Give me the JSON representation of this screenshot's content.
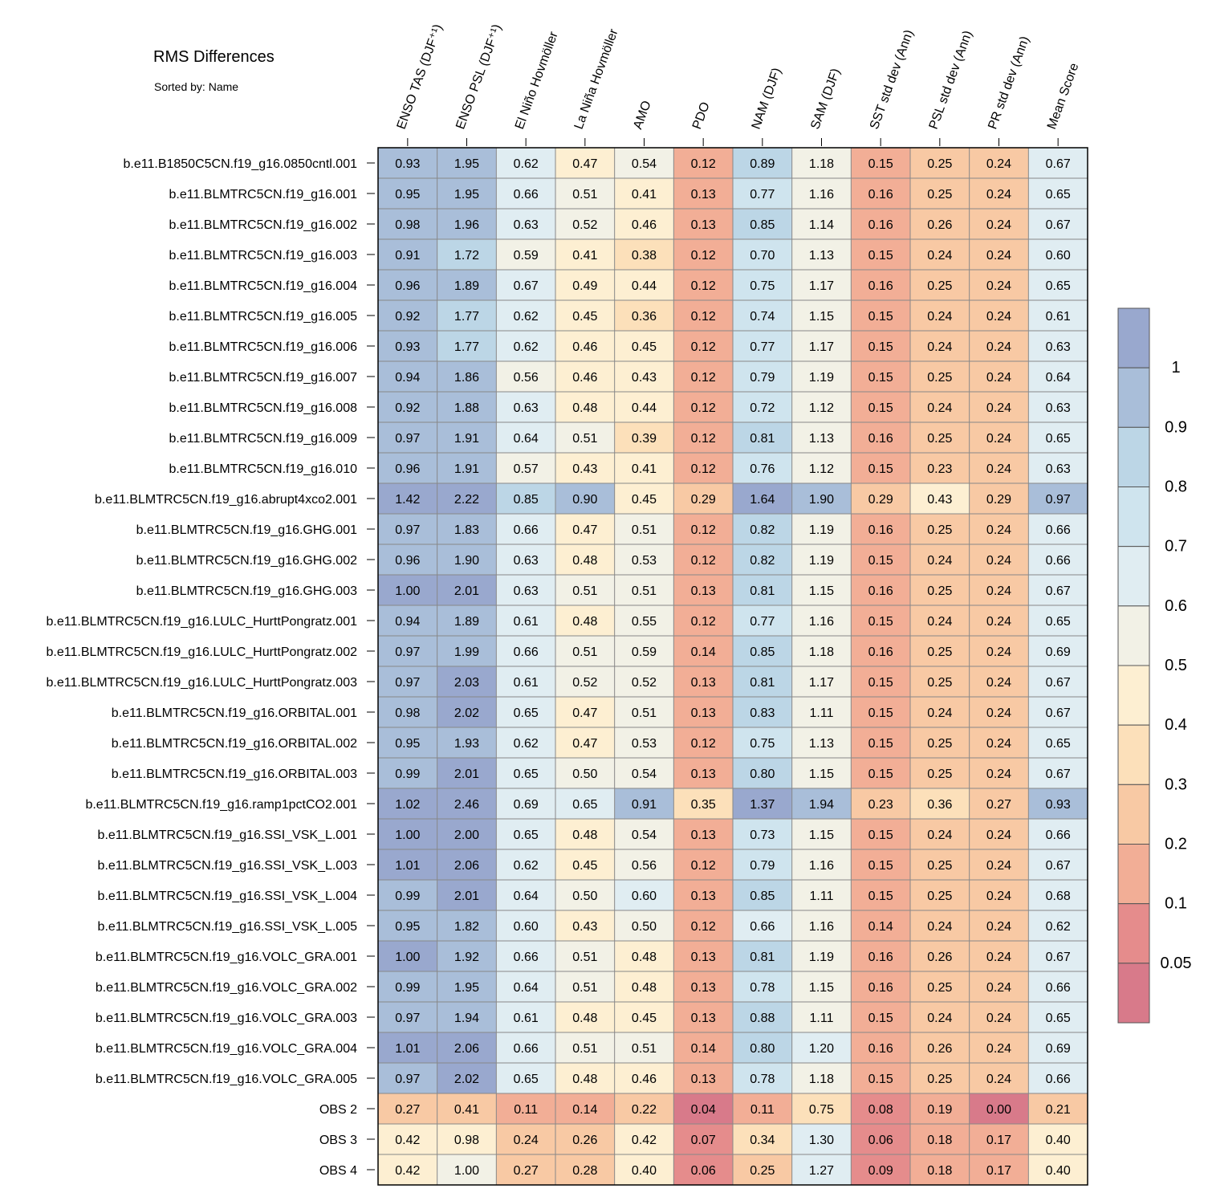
{
  "title": "RMS Differences",
  "subtitle": "Sorted by: Name",
  "chart_data": {
    "type": "heatmap",
    "columns": [
      "ENSO TAS (DJF⁺¹)",
      "ENSO PSL (DJF⁺¹)",
      "El Niño Hovmöller",
      "La Niña Hovmöller",
      "AMO",
      "PDO",
      "NAM (DJF)",
      "SAM (DJF)",
      "SST std dev (Ann)",
      "PSL std dev (Ann)",
      "PR std dev (Ann)",
      "Mean Score"
    ],
    "rows": [
      "b.e11.B1850C5CN.f19_g16.0850cntl.001",
      "b.e11.BLMTRC5CN.f19_g16.001",
      "b.e11.BLMTRC5CN.f19_g16.002",
      "b.e11.BLMTRC5CN.f19_g16.003",
      "b.e11.BLMTRC5CN.f19_g16.004",
      "b.e11.BLMTRC5CN.f19_g16.005",
      "b.e11.BLMTRC5CN.f19_g16.006",
      "b.e11.BLMTRC5CN.f19_g16.007",
      "b.e11.BLMTRC5CN.f19_g16.008",
      "b.e11.BLMTRC5CN.f19_g16.009",
      "b.e11.BLMTRC5CN.f19_g16.010",
      "b.e11.BLMTRC5CN.f19_g16.abrupt4xco2.001",
      "b.e11.BLMTRC5CN.f19_g16.GHG.001",
      "b.e11.BLMTRC5CN.f19_g16.GHG.002",
      "b.e11.BLMTRC5CN.f19_g16.GHG.003",
      "b.e11.BLMTRC5CN.f19_g16.LULC_HurttPongratz.001",
      "b.e11.BLMTRC5CN.f19_g16.LULC_HurttPongratz.002",
      "b.e11.BLMTRC5CN.f19_g16.LULC_HurttPongratz.003",
      "b.e11.BLMTRC5CN.f19_g16.ORBITAL.001",
      "b.e11.BLMTRC5CN.f19_g16.ORBITAL.002",
      "b.e11.BLMTRC5CN.f19_g16.ORBITAL.003",
      "b.e11.BLMTRC5CN.f19_g16.ramp1pctCO2.001",
      "b.e11.BLMTRC5CN.f19_g16.SSI_VSK_L.001",
      "b.e11.BLMTRC5CN.f19_g16.SSI_VSK_L.003",
      "b.e11.BLMTRC5CN.f19_g16.SSI_VSK_L.004",
      "b.e11.BLMTRC5CN.f19_g16.SSI_VSK_L.005",
      "b.e11.BLMTRC5CN.f19_g16.VOLC_GRA.001",
      "b.e11.BLMTRC5CN.f19_g16.VOLC_GRA.002",
      "b.e11.BLMTRC5CN.f19_g16.VOLC_GRA.003",
      "b.e11.BLMTRC5CN.f19_g16.VOLC_GRA.004",
      "b.e11.BLMTRC5CN.f19_g16.VOLC_GRA.005",
      "OBS 2",
      "OBS 3",
      "OBS 4"
    ],
    "values": [
      [
        "0.93",
        "1.95",
        "0.62",
        "0.47",
        "0.54",
        "0.12",
        "0.89",
        "1.18",
        "0.15",
        "0.25",
        "0.24",
        "0.67"
      ],
      [
        "0.95",
        "1.95",
        "0.66",
        "0.51",
        "0.41",
        "0.13",
        "0.77",
        "1.16",
        "0.16",
        "0.25",
        "0.24",
        "0.65"
      ],
      [
        "0.98",
        "1.96",
        "0.63",
        "0.52",
        "0.46",
        "0.13",
        "0.85",
        "1.14",
        "0.16",
        "0.26",
        "0.24",
        "0.67"
      ],
      [
        "0.91",
        "1.72",
        "0.59",
        "0.41",
        "0.38",
        "0.12",
        "0.70",
        "1.13",
        "0.15",
        "0.24",
        "0.24",
        "0.60"
      ],
      [
        "0.96",
        "1.89",
        "0.67",
        "0.49",
        "0.44",
        "0.12",
        "0.75",
        "1.17",
        "0.16",
        "0.25",
        "0.24",
        "0.65"
      ],
      [
        "0.92",
        "1.77",
        "0.62",
        "0.45",
        "0.36",
        "0.12",
        "0.74",
        "1.15",
        "0.15",
        "0.24",
        "0.24",
        "0.61"
      ],
      [
        "0.93",
        "1.77",
        "0.62",
        "0.46",
        "0.45",
        "0.12",
        "0.77",
        "1.17",
        "0.15",
        "0.24",
        "0.24",
        "0.63"
      ],
      [
        "0.94",
        "1.86",
        "0.56",
        "0.46",
        "0.43",
        "0.12",
        "0.79",
        "1.19",
        "0.15",
        "0.25",
        "0.24",
        "0.64"
      ],
      [
        "0.92",
        "1.88",
        "0.63",
        "0.48",
        "0.44",
        "0.12",
        "0.72",
        "1.12",
        "0.15",
        "0.24",
        "0.24",
        "0.63"
      ],
      [
        "0.97",
        "1.91",
        "0.64",
        "0.51",
        "0.39",
        "0.12",
        "0.81",
        "1.13",
        "0.16",
        "0.25",
        "0.24",
        "0.65"
      ],
      [
        "0.96",
        "1.91",
        "0.57",
        "0.43",
        "0.41",
        "0.12",
        "0.76",
        "1.12",
        "0.15",
        "0.23",
        "0.24",
        "0.63"
      ],
      [
        "1.42",
        "2.22",
        "0.85",
        "0.90",
        "0.45",
        "0.29",
        "1.64",
        "1.90",
        "0.29",
        "0.43",
        "0.29",
        "0.97"
      ],
      [
        "0.97",
        "1.83",
        "0.66",
        "0.47",
        "0.51",
        "0.12",
        "0.82",
        "1.19",
        "0.16",
        "0.25",
        "0.24",
        "0.66"
      ],
      [
        "0.96",
        "1.90",
        "0.63",
        "0.48",
        "0.53",
        "0.12",
        "0.82",
        "1.19",
        "0.15",
        "0.24",
        "0.24",
        "0.66"
      ],
      [
        "1.00",
        "2.01",
        "0.63",
        "0.51",
        "0.51",
        "0.13",
        "0.81",
        "1.15",
        "0.16",
        "0.25",
        "0.24",
        "0.67"
      ],
      [
        "0.94",
        "1.89",
        "0.61",
        "0.48",
        "0.55",
        "0.12",
        "0.77",
        "1.16",
        "0.15",
        "0.24",
        "0.24",
        "0.65"
      ],
      [
        "0.97",
        "1.99",
        "0.66",
        "0.51",
        "0.59",
        "0.14",
        "0.85",
        "1.18",
        "0.16",
        "0.25",
        "0.24",
        "0.69"
      ],
      [
        "0.97",
        "2.03",
        "0.61",
        "0.52",
        "0.52",
        "0.13",
        "0.81",
        "1.17",
        "0.15",
        "0.25",
        "0.24",
        "0.67"
      ],
      [
        "0.98",
        "2.02",
        "0.65",
        "0.47",
        "0.51",
        "0.13",
        "0.83",
        "1.11",
        "0.15",
        "0.24",
        "0.24",
        "0.67"
      ],
      [
        "0.95",
        "1.93",
        "0.62",
        "0.47",
        "0.53",
        "0.12",
        "0.75",
        "1.13",
        "0.15",
        "0.25",
        "0.24",
        "0.65"
      ],
      [
        "0.99",
        "2.01",
        "0.65",
        "0.50",
        "0.54",
        "0.13",
        "0.80",
        "1.15",
        "0.15",
        "0.25",
        "0.24",
        "0.67"
      ],
      [
        "1.02",
        "2.46",
        "0.69",
        "0.65",
        "0.91",
        "0.35",
        "1.37",
        "1.94",
        "0.23",
        "0.36",
        "0.27",
        "0.93"
      ],
      [
        "1.00",
        "2.00",
        "0.65",
        "0.48",
        "0.54",
        "0.13",
        "0.73",
        "1.15",
        "0.15",
        "0.24",
        "0.24",
        "0.66"
      ],
      [
        "1.01",
        "2.06",
        "0.62",
        "0.45",
        "0.56",
        "0.12",
        "0.79",
        "1.16",
        "0.15",
        "0.25",
        "0.24",
        "0.67"
      ],
      [
        "0.99",
        "2.01",
        "0.64",
        "0.50",
        "0.60",
        "0.13",
        "0.85",
        "1.11",
        "0.15",
        "0.25",
        "0.24",
        "0.68"
      ],
      [
        "0.95",
        "1.82",
        "0.60",
        "0.43",
        "0.50",
        "0.12",
        "0.66",
        "1.16",
        "0.14",
        "0.24",
        "0.24",
        "0.62"
      ],
      [
        "1.00",
        "1.92",
        "0.66",
        "0.51",
        "0.48",
        "0.13",
        "0.81",
        "1.19",
        "0.16",
        "0.26",
        "0.24",
        "0.67"
      ],
      [
        "0.99",
        "1.95",
        "0.64",
        "0.51",
        "0.48",
        "0.13",
        "0.78",
        "1.15",
        "0.16",
        "0.25",
        "0.24",
        "0.66"
      ],
      [
        "0.97",
        "1.94",
        "0.61",
        "0.48",
        "0.45",
        "0.13",
        "0.88",
        "1.11",
        "0.15",
        "0.24",
        "0.24",
        "0.65"
      ],
      [
        "1.01",
        "2.06",
        "0.66",
        "0.51",
        "0.51",
        "0.14",
        "0.80",
        "1.20",
        "0.16",
        "0.26",
        "0.24",
        "0.69"
      ],
      [
        "0.97",
        "2.02",
        "0.65",
        "0.48",
        "0.46",
        "0.13",
        "0.78",
        "1.18",
        "0.15",
        "0.25",
        "0.24",
        "0.66"
      ],
      [
        "0.27",
        "0.41",
        "0.11",
        "0.14",
        "0.22",
        "0.04",
        "0.11",
        "0.75",
        "0.08",
        "0.19",
        "0.00",
        "0.21"
      ],
      [
        "0.42",
        "0.98",
        "0.24",
        "0.26",
        "0.42",
        "0.07",
        "0.34",
        "1.30",
        "0.06",
        "0.18",
        "0.17",
        "0.40"
      ],
      [
        "0.42",
        "1.00",
        "0.27",
        "0.28",
        "0.40",
        "0.06",
        "0.25",
        "1.27",
        "0.09",
        "0.18",
        "0.17",
        "0.40"
      ]
    ],
    "colorbar": {
      "levels": [
        "1",
        "0.9",
        "0.8",
        "0.7",
        "0.6",
        "0.5",
        "0.4",
        "0.3",
        "0.2",
        "0.1",
        "0.05"
      ],
      "thresholds": [
        1,
        0.9,
        0.8,
        0.7,
        0.6,
        0.5,
        0.4,
        0.3,
        0.2,
        0.1,
        0.05
      ],
      "colors": [
        "#99a8ce",
        "#a9bed9",
        "#bcd6e6",
        "#cfe4ee",
        "#e0edf2",
        "#f2f1e6",
        "#fdefd2",
        "#fce0ba",
        "#f8c9a4",
        "#f2ae96",
        "#e58c8c",
        "#d87a8a"
      ]
    }
  }
}
